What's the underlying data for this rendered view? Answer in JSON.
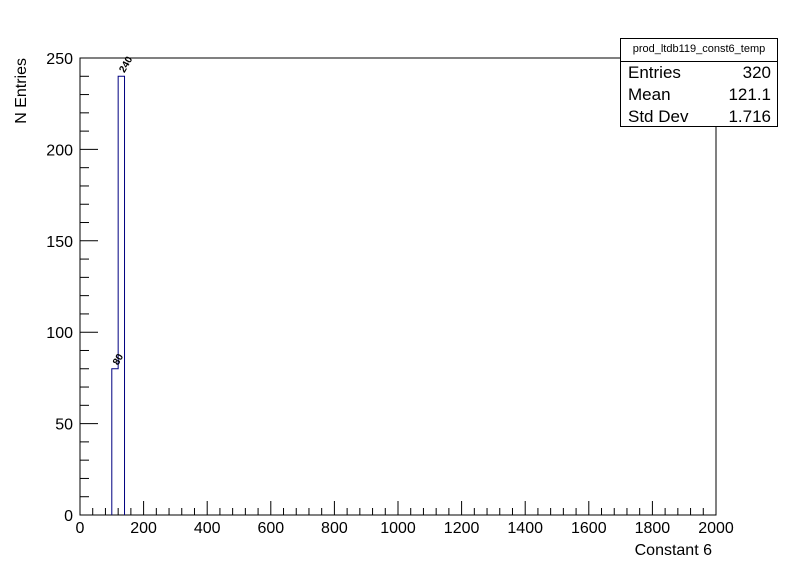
{
  "chart_data": {
    "type": "bar",
    "title": "",
    "xlabel": "Constant 6",
    "ylabel": "N Entries",
    "xlim": [
      0,
      2000
    ],
    "ylim": [
      0,
      250
    ],
    "x_ticks": [
      0,
      200,
      400,
      600,
      800,
      1000,
      1200,
      1400,
      1600,
      1800,
      2000
    ],
    "y_ticks": [
      0,
      50,
      100,
      150,
      200,
      250
    ],
    "bins": [
      {
        "x_low": 100,
        "x_high": 120,
        "value": 80
      },
      {
        "x_low": 120,
        "x_high": 140,
        "value": 240
      }
    ],
    "data_labels": [
      "80",
      "240"
    ],
    "line_color": "#000080",
    "grid": false
  },
  "stats": {
    "name": "prod_ltdb119_const6_temp",
    "rows": [
      {
        "label": "Entries",
        "value": "320"
      },
      {
        "label": "Mean",
        "value": "121.1"
      },
      {
        "label": "Std Dev",
        "value": "1.716"
      }
    ]
  }
}
